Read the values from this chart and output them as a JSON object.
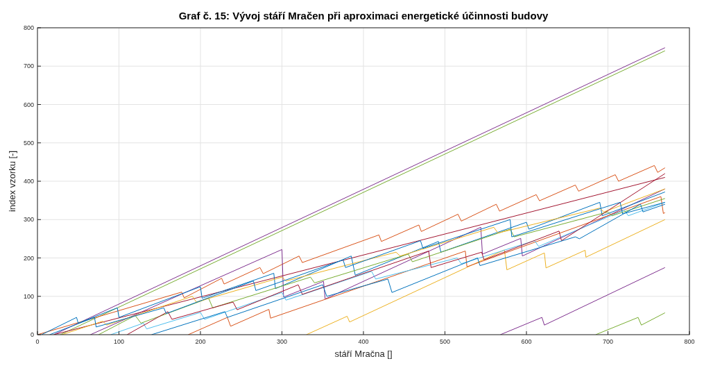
{
  "chart_data": {
    "type": "line",
    "title": "Graf č. 15: Vývoj stáří Mračen při aproximaci energetické účinnosti budovy",
    "xlabel": "stáří Mračna []",
    "ylabel": "index vzorku [-]",
    "xlim": [
      0,
      800
    ],
    "xticks": [
      0,
      100,
      200,
      300,
      400,
      500,
      600,
      700,
      800
    ],
    "ylim": [
      0,
      800
    ],
    "yticks": [
      0,
      100,
      200,
      300,
      400,
      500,
      600,
      700,
      800
    ],
    "grid": true,
    "series": [
      {
        "color": "#7e2f8e",
        "x": [
          20,
          770
        ],
        "values": [
          0,
          748
        ]
      },
      {
        "color": "#77ac30",
        "x": [
          28,
          770
        ],
        "values": [
          0,
          740
        ]
      },
      {
        "color": "#d95319",
        "x": [
          0,
          177,
          180,
          226,
          229,
          273,
          277,
          321,
          325,
          419,
          422,
          468,
          471,
          516,
          520,
          563,
          567,
          612,
          616,
          660,
          664,
          709,
          713,
          757,
          761,
          770
        ],
        "values": [
          0,
          111,
          96,
          147,
          132,
          175,
          159,
          205,
          188,
          260,
          243,
          286,
          269,
          314,
          296,
          340,
          322,
          365,
          349,
          390,
          374,
          417,
          400,
          441,
          423,
          435
        ]
      },
      {
        "color": "#7e2f8e",
        "x": [
          65,
          300,
          302,
          351,
          353,
          544,
          546,
          593,
          595,
          770
        ],
        "values": [
          0,
          222,
          98,
          139,
          93,
          280,
          210,
          251,
          205,
          380
        ]
      },
      {
        "color": "#edb120",
        "x": [
          330,
          380,
          383,
          573,
          576,
          622,
          624,
          672,
          673,
          770
        ],
        "values": [
          0,
          48,
          33,
          221,
          169,
          213,
          174,
          220,
          202,
          300
        ]
      },
      {
        "color": "#7e2f8e",
        "x": [
          568,
          619,
          622,
          770
        ],
        "values": [
          0,
          45,
          25,
          175
        ]
      },
      {
        "color": "#77ac30",
        "x": [
          685,
          737,
          741,
          770
        ],
        "values": [
          0,
          45,
          25,
          57
        ]
      },
      {
        "color": "#d95319",
        "x": [
          185,
          233,
          237,
          284,
          286,
          525,
          527,
          765,
          768,
          770
        ],
        "values": [
          0,
          45,
          22,
          66,
          43,
          218,
          177,
          360,
          316,
          318
        ]
      },
      {
        "color": "#a2142f",
        "x": [
          20,
          770
        ],
        "values": [
          0,
          410
        ]
      },
      {
        "color": "#0072bd",
        "x": [
          5,
          48,
          50,
          98,
          100,
          200,
          202,
          290,
          292,
          385,
          390,
          492,
          495,
          600,
          603,
          690,
          693,
          770
        ],
        "values": [
          0,
          45,
          30,
          70,
          45,
          125,
          95,
          160,
          120,
          205,
          155,
          243,
          215,
          293,
          275,
          345,
          310,
          372
        ]
      },
      {
        "color": "#4dbeee",
        "x": [
          90,
          130,
          134,
          200,
          205,
          300,
          305,
          410,
          415,
          515,
          520,
          610,
          615,
          720,
          725,
          770
        ],
        "values": [
          0,
          30,
          15,
          58,
          40,
          110,
          90,
          165,
          145,
          200,
          185,
          245,
          230,
          325,
          310,
          345
        ]
      },
      {
        "color": "#77ac30",
        "x": [
          75,
          120,
          127,
          210,
          215,
          335,
          340,
          455,
          460,
          580,
          585,
          700,
          705,
          770
        ],
        "values": [
          0,
          50,
          30,
          95,
          70,
          150,
          135,
          210,
          190,
          275,
          255,
          320,
          310,
          355
        ]
      },
      {
        "color": "#edb120",
        "x": [
          30,
          80,
          85,
          190,
          195,
          300,
          305,
          440,
          445,
          560,
          565,
          690,
          695,
          770
        ],
        "values": [
          0,
          35,
          25,
          100,
          85,
          150,
          140,
          215,
          205,
          280,
          265,
          330,
          320,
          380
        ]
      },
      {
        "color": "#a2142f",
        "x": [
          110,
          160,
          165,
          240,
          245,
          320,
          325,
          480,
          483,
          545,
          548,
          640,
          643,
          770
        ],
        "values": [
          0,
          60,
          40,
          85,
          65,
          130,
          105,
          218,
          175,
          215,
          195,
          270,
          245,
          420
        ]
      },
      {
        "color": "#0072bd",
        "x": [
          140,
          230,
          233,
          350,
          355,
          430,
          435,
          540,
          543,
          660,
          665,
          740,
          743,
          770
        ],
        "values": [
          0,
          60,
          45,
          130,
          100,
          145,
          110,
          200,
          180,
          255,
          250,
          340,
          320,
          340
        ]
      },
      {
        "color": "#0072bd",
        "x": [
          15,
          70,
          72,
          155,
          158,
          265,
          268,
          375,
          378,
          470,
          473,
          580,
          582,
          715,
          718,
          770
        ],
        "values": [
          0,
          45,
          20,
          70,
          55,
          140,
          115,
          195,
          175,
          245,
          225,
          300,
          255,
          345,
          315,
          345
        ]
      }
    ]
  }
}
